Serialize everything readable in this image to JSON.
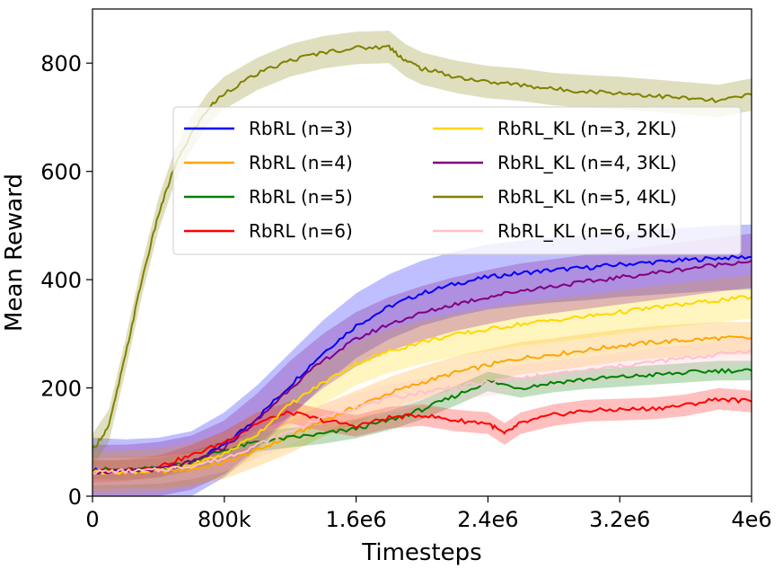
{
  "chart_data": {
    "type": "line",
    "xlabel": "Timesteps",
    "ylabel": "Mean Reward",
    "xlim": [
      0,
      4000000
    ],
    "ylim": [
      0,
      900
    ],
    "xticks": [
      {
        "value": 0,
        "label": "0"
      },
      {
        "value": 800000,
        "label": "800k"
      },
      {
        "value": 1600000,
        "label": "1.6e6"
      },
      {
        "value": 2400000,
        "label": "2.4e6"
      },
      {
        "value": 3200000,
        "label": "3.2e6"
      },
      {
        "value": 4000000,
        "label": "4e6"
      }
    ],
    "yticks": [
      {
        "value": 0,
        "label": "0"
      },
      {
        "value": 200,
        "label": "200"
      },
      {
        "value": 400,
        "label": "400"
      },
      {
        "value": 600,
        "label": "600"
      },
      {
        "value": 800,
        "label": "800"
      }
    ],
    "grid": false,
    "legend": "upper center, two columns",
    "series": [
      {
        "name": "RbRL (n=3)",
        "color": "#0000ff",
        "band": 60,
        "x": [
          0,
          200000,
          400000,
          600000,
          800000,
          1000000,
          1200000,
          1400000,
          1600000,
          1800000,
          2000000,
          2200000,
          2400000,
          2600000,
          2800000,
          3000000,
          3200000,
          3400000,
          3600000,
          3800000,
          4000000
        ],
        "y": [
          48,
          45,
          48,
          60,
          95,
          145,
          205,
          265,
          315,
          350,
          375,
          392,
          405,
          412,
          418,
          422,
          428,
          432,
          436,
          440,
          442
        ]
      },
      {
        "name": "RbRL (n=4)",
        "color": "#ffa500",
        "band": 30,
        "x": [
          0,
          200000,
          400000,
          600000,
          800000,
          1000000,
          1200000,
          1400000,
          1600000,
          1800000,
          2000000,
          2200000,
          2400000,
          2600000,
          2800000,
          3000000,
          3200000,
          3400000,
          3600000,
          3800000,
          4000000
        ],
        "y": [
          42,
          45,
          45,
          50,
          62,
          85,
          110,
          140,
          165,
          190,
          210,
          228,
          242,
          255,
          262,
          270,
          278,
          284,
          288,
          292,
          292
        ]
      },
      {
        "name": "RbRL (n=5)",
        "color": "#008000",
        "band": 18,
        "x": [
          0,
          200000,
          400000,
          600000,
          800000,
          1000000,
          1200000,
          1400000,
          1600000,
          1800000,
          2000000,
          2200000,
          2400000,
          2600000,
          2800000,
          3000000,
          3200000,
          3400000,
          3600000,
          3800000,
          4000000
        ],
        "y": [
          50,
          48,
          52,
          65,
          85,
          100,
          108,
          115,
          125,
          140,
          160,
          185,
          212,
          200,
          210,
          216,
          220,
          224,
          228,
          232,
          232
        ]
      },
      {
        "name": "RbRL (n=6)",
        "color": "#ff0000",
        "band": 20,
        "x": [
          0,
          200000,
          400000,
          600000,
          800000,
          1000000,
          1200000,
          1400000,
          1600000,
          1800000,
          2000000,
          2200000,
          2400000,
          2500000,
          2600000,
          2800000,
          3000000,
          3200000,
          3400000,
          3600000,
          3800000,
          4000000
        ],
        "y": [
          45,
          48,
          55,
          75,
          100,
          135,
          155,
          140,
          130,
          145,
          150,
          140,
          135,
          115,
          135,
          150,
          158,
          160,
          162,
          168,
          180,
          175
        ]
      },
      {
        "name": "RbRL_KL (n=3, 2KL)",
        "color": "#ffd700",
        "band": 40,
        "x": [
          0,
          200000,
          400000,
          600000,
          800000,
          1000000,
          1200000,
          1400000,
          1600000,
          1800000,
          2000000,
          2200000,
          2400000,
          2600000,
          2800000,
          3000000,
          3200000,
          3400000,
          3600000,
          3800000,
          4000000
        ],
        "y": [
          45,
          45,
          48,
          58,
          78,
          115,
          170,
          210,
          245,
          268,
          285,
          298,
          308,
          318,
          325,
          332,
          340,
          348,
          355,
          362,
          368
        ]
      },
      {
        "name": "RbRL_KL (n=4, 3KL)",
        "color": "#800080",
        "band": 50,
        "x": [
          0,
          200000,
          400000,
          600000,
          800000,
          1000000,
          1200000,
          1400000,
          1600000,
          1800000,
          2000000,
          2200000,
          2400000,
          2600000,
          2800000,
          3000000,
          3200000,
          3400000,
          3600000,
          3800000,
          4000000
        ],
        "y": [
          45,
          45,
          50,
          62,
          90,
          140,
          200,
          250,
          290,
          318,
          338,
          355,
          368,
          380,
          388,
          396,
          404,
          412,
          420,
          428,
          435
        ]
      },
      {
        "name": "RbRL_KL (n=5, 4KL)",
        "color": "#808000",
        "band": 30,
        "x": [
          0,
          100000,
          200000,
          300000,
          400000,
          500000,
          600000,
          700000,
          800000,
          1000000,
          1200000,
          1400000,
          1600000,
          1800000,
          1900000,
          2000000,
          2200000,
          2400000,
          2600000,
          2800000,
          3000000,
          3200000,
          3400000,
          3600000,
          3800000,
          4000000
        ],
        "y": [
          85,
          130,
          260,
          400,
          520,
          610,
          670,
          715,
          745,
          780,
          805,
          820,
          828,
          830,
          805,
          790,
          775,
          765,
          760,
          752,
          748,
          745,
          740,
          735,
          730,
          742
        ]
      },
      {
        "name": "RbRL_KL (n=6, 5KL)",
        "color": "#ffc0cb",
        "band": 25,
        "x": [
          0,
          200000,
          400000,
          600000,
          800000,
          1000000,
          1200000,
          1400000,
          1600000,
          1800000,
          2000000,
          2200000,
          2400000,
          2600000,
          2800000,
          3000000,
          3200000,
          3400000,
          3600000,
          3800000,
          4000000
        ],
        "y": [
          45,
          46,
          48,
          56,
          70,
          95,
          120,
          145,
          165,
          180,
          192,
          202,
          210,
          218,
          225,
          232,
          240,
          248,
          255,
          262,
          270
        ]
      }
    ]
  }
}
